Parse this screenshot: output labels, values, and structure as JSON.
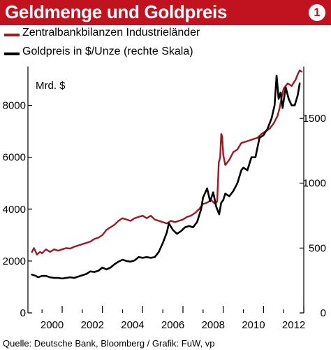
{
  "header": {
    "title": "Geldmenge und Goldpreis",
    "badge": "1"
  },
  "source": "Quelle: Deutsche Bank, Bloomberg / Grafik: FuW, vp",
  "colors": {
    "title_bar": "#c1121f",
    "series_red": "#9b1b22",
    "series_black": "#000000"
  },
  "chart_data": {
    "type": "line",
    "title": "Geldmenge und Goldpreis",
    "left_axis": {
      "label": "Mrd. $",
      "ylim": [
        0,
        9500
      ],
      "ticks": [
        0,
        2000,
        4000,
        6000,
        8000
      ]
    },
    "right_axis": {
      "ylim": [
        0,
        1900
      ],
      "ticks": [
        0,
        500,
        1000,
        1500
      ]
    },
    "x_axis": {
      "xlim": [
        1999.3,
        2013.0
      ],
      "ticks": [
        2000,
        2002,
        2004,
        2006,
        2008,
        2010,
        2012
      ]
    },
    "grid": false,
    "legend": "top-left",
    "series": [
      {
        "name": "Zentralbankbilanzen Industrieländer",
        "axis": "left",
        "color": "#9b1b22",
        "points": [
          [
            1999.5,
            2350
          ],
          [
            1999.6,
            2500
          ],
          [
            1999.75,
            2250
          ],
          [
            1999.9,
            2350
          ],
          [
            2000.0,
            2300
          ],
          [
            2000.2,
            2450
          ],
          [
            2000.4,
            2350
          ],
          [
            2000.6,
            2450
          ],
          [
            2000.8,
            2400
          ],
          [
            2001.0,
            2450
          ],
          [
            2001.2,
            2500
          ],
          [
            2001.4,
            2480
          ],
          [
            2001.6,
            2550
          ],
          [
            2001.8,
            2600
          ],
          [
            2002.0,
            2650
          ],
          [
            2002.2,
            2700
          ],
          [
            2002.4,
            2750
          ],
          [
            2002.6,
            2850
          ],
          [
            2002.8,
            2900
          ],
          [
            2003.0,
            3000
          ],
          [
            2003.2,
            3200
          ],
          [
            2003.4,
            3300
          ],
          [
            2003.6,
            3400
          ],
          [
            2003.8,
            3550
          ],
          [
            2004.0,
            3650
          ],
          [
            2004.2,
            3600
          ],
          [
            2004.4,
            3550
          ],
          [
            2004.6,
            3650
          ],
          [
            2004.8,
            3700
          ],
          [
            2005.0,
            3750
          ],
          [
            2005.2,
            3650
          ],
          [
            2005.4,
            3750
          ],
          [
            2005.6,
            3600
          ],
          [
            2005.8,
            3550
          ],
          [
            2006.0,
            3500
          ],
          [
            2006.2,
            3450
          ],
          [
            2006.4,
            3550
          ],
          [
            2006.6,
            3500
          ],
          [
            2006.8,
            3550
          ],
          [
            2007.0,
            3600
          ],
          [
            2007.2,
            3700
          ],
          [
            2007.4,
            3750
          ],
          [
            2007.6,
            3850
          ],
          [
            2007.8,
            4000
          ],
          [
            2008.0,
            4200
          ],
          [
            2008.2,
            4250
          ],
          [
            2008.4,
            4350
          ],
          [
            2008.6,
            4200
          ],
          [
            2008.7,
            4300
          ],
          [
            2008.78,
            5800
          ],
          [
            2008.85,
            6000
          ],
          [
            2008.9,
            6900
          ],
          [
            2008.95,
            6800
          ],
          [
            2009.0,
            6100
          ],
          [
            2009.1,
            5700
          ],
          [
            2009.3,
            5900
          ],
          [
            2009.5,
            6200
          ],
          [
            2009.7,
            6300
          ],
          [
            2009.9,
            6550
          ],
          [
            2010.1,
            6600
          ],
          [
            2010.3,
            6650
          ],
          [
            2010.5,
            6700
          ],
          [
            2010.7,
            6750
          ],
          [
            2010.9,
            6900
          ],
          [
            2011.1,
            7000
          ],
          [
            2011.3,
            7100
          ],
          [
            2011.5,
            7300
          ],
          [
            2011.7,
            7600
          ],
          [
            2011.8,
            7900
          ],
          [
            2011.9,
            8300
          ],
          [
            2012.0,
            8650
          ],
          [
            2012.2,
            8850
          ],
          [
            2012.4,
            8750
          ],
          [
            2012.6,
            9000
          ],
          [
            2012.7,
            9200
          ],
          [
            2012.8,
            9350
          ],
          [
            2012.9,
            9300
          ]
        ]
      },
      {
        "name": "Goldpreis in $/Unze (rechte Skala)",
        "axis": "right",
        "color": "#000000",
        "points": [
          [
            1999.5,
            295
          ],
          [
            1999.7,
            285
          ],
          [
            1999.8,
            275
          ],
          [
            2000.0,
            285
          ],
          [
            2000.2,
            285
          ],
          [
            2000.4,
            275
          ],
          [
            2000.6,
            270
          ],
          [
            2000.8,
            270
          ],
          [
            2001.0,
            265
          ],
          [
            2001.2,
            270
          ],
          [
            2001.4,
            275
          ],
          [
            2001.6,
            270
          ],
          [
            2001.8,
            280
          ],
          [
            2002.0,
            290
          ],
          [
            2002.2,
            300
          ],
          [
            2002.4,
            320
          ],
          [
            2002.6,
            315
          ],
          [
            2002.8,
            325
          ],
          [
            2003.0,
            350
          ],
          [
            2003.2,
            335
          ],
          [
            2003.4,
            350
          ],
          [
            2003.6,
            375
          ],
          [
            2003.8,
            395
          ],
          [
            2004.0,
            410
          ],
          [
            2004.2,
            400
          ],
          [
            2004.4,
            395
          ],
          [
            2004.6,
            405
          ],
          [
            2004.8,
            430
          ],
          [
            2005.0,
            425
          ],
          [
            2005.2,
            430
          ],
          [
            2005.4,
            425
          ],
          [
            2005.6,
            430
          ],
          [
            2005.8,
            470
          ],
          [
            2006.0,
            540
          ],
          [
            2006.2,
            620
          ],
          [
            2006.3,
            690
          ],
          [
            2006.5,
            640
          ],
          [
            2006.7,
            610
          ],
          [
            2006.9,
            630
          ],
          [
            2007.1,
            660
          ],
          [
            2007.3,
            670
          ],
          [
            2007.5,
            660
          ],
          [
            2007.7,
            700
          ],
          [
            2007.9,
            800
          ],
          [
            2008.0,
            890
          ],
          [
            2008.2,
            960
          ],
          [
            2008.35,
            860
          ],
          [
            2008.5,
            930
          ],
          [
            2008.65,
            820
          ],
          [
            2008.8,
            760
          ],
          [
            2008.9,
            850
          ],
          [
            2009.0,
            870
          ],
          [
            2009.1,
            920
          ],
          [
            2009.3,
            900
          ],
          [
            2009.5,
            940
          ],
          [
            2009.7,
            1000
          ],
          [
            2009.9,
            1100
          ],
          [
            2010.0,
            1120
          ],
          [
            2010.2,
            1100
          ],
          [
            2010.4,
            1200
          ],
          [
            2010.6,
            1200
          ],
          [
            2010.8,
            1350
          ],
          [
            2011.0,
            1370
          ],
          [
            2011.2,
            1420
          ],
          [
            2011.4,
            1500
          ],
          [
            2011.55,
            1600
          ],
          [
            2011.65,
            1830
          ],
          [
            2011.75,
            1650
          ],
          [
            2011.85,
            1700
          ],
          [
            2011.95,
            1580
          ],
          [
            2012.1,
            1740
          ],
          [
            2012.25,
            1650
          ],
          [
            2012.4,
            1600
          ],
          [
            2012.55,
            1600
          ],
          [
            2012.7,
            1680
          ],
          [
            2012.8,
            1770
          ]
        ]
      }
    ]
  }
}
